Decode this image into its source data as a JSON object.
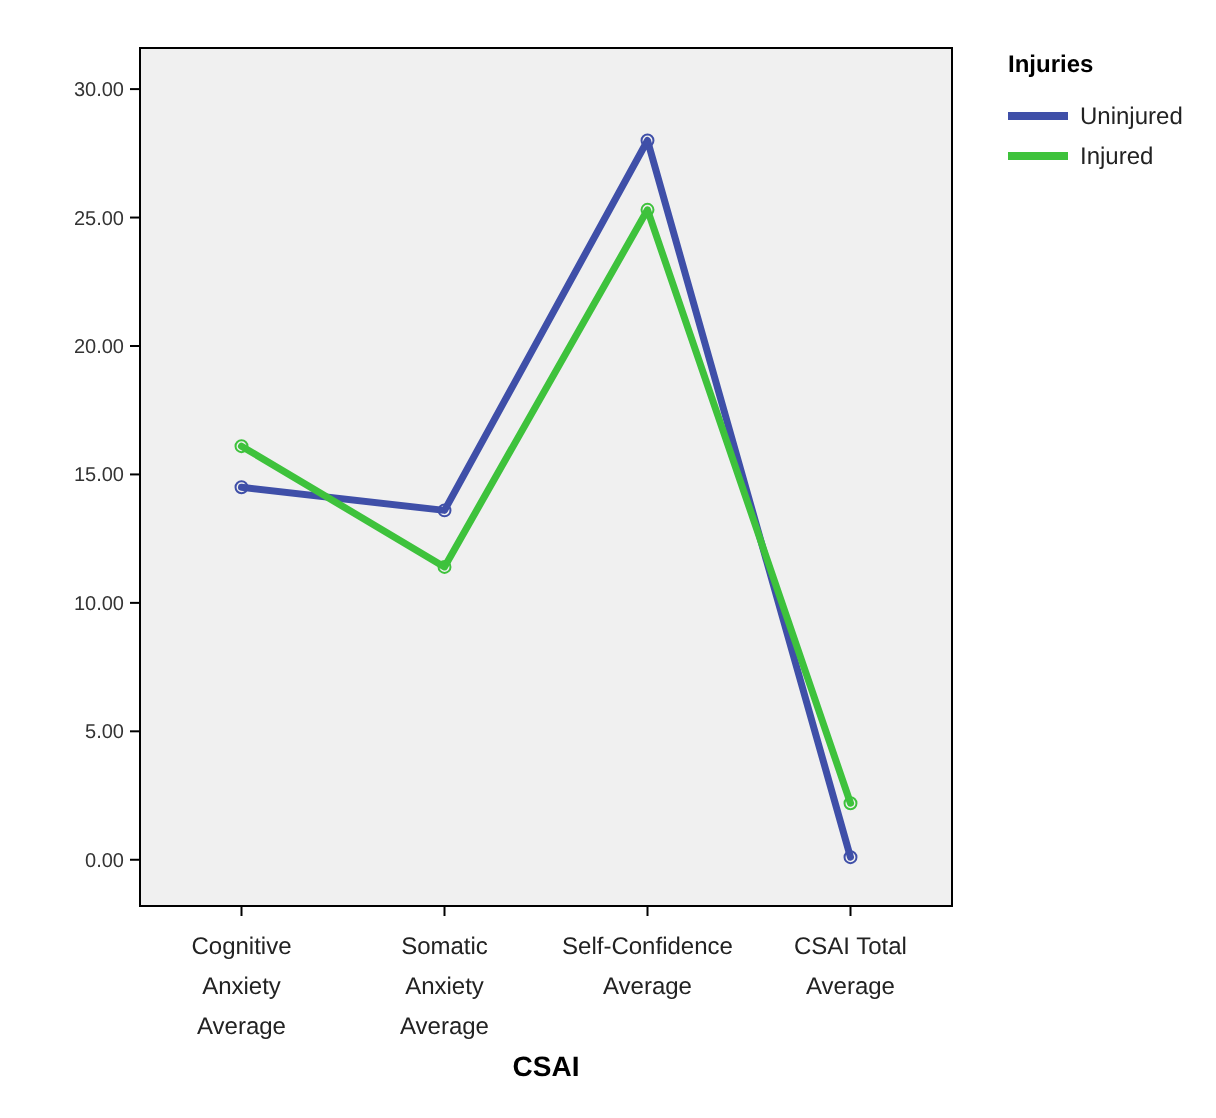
{
  "chart_data": {
    "type": "line",
    "xlabel": "CSAI",
    "legend_title": "Injuries",
    "legend": "right",
    "marker": "circle",
    "categories": [
      "Cognitive Anxiety Average",
      "Somatic Anxiety Average",
      "Self-Confidence Average",
      "CSAI Total Average"
    ],
    "series": [
      {
        "name": "Uninjured",
        "color": "#3f4fa8",
        "values": [
          14.5,
          13.6,
          28.0,
          0.1
        ]
      },
      {
        "name": "Injured",
        "color": "#3ec23c",
        "values": [
          16.1,
          11.4,
          25.3,
          2.2
        ]
      }
    ],
    "ylim": [
      -1.8,
      31.6
    ],
    "yticks": [
      {
        "value": 0,
        "label": "0.00"
      },
      {
        "value": 5,
        "label": "5.00"
      },
      {
        "value": 10,
        "label": "10.00"
      },
      {
        "value": 15,
        "label": "15.00"
      },
      {
        "value": 20,
        "label": "20.00"
      },
      {
        "value": 25,
        "label": "25.00"
      },
      {
        "value": 30,
        "label": "30.00"
      }
    ]
  }
}
